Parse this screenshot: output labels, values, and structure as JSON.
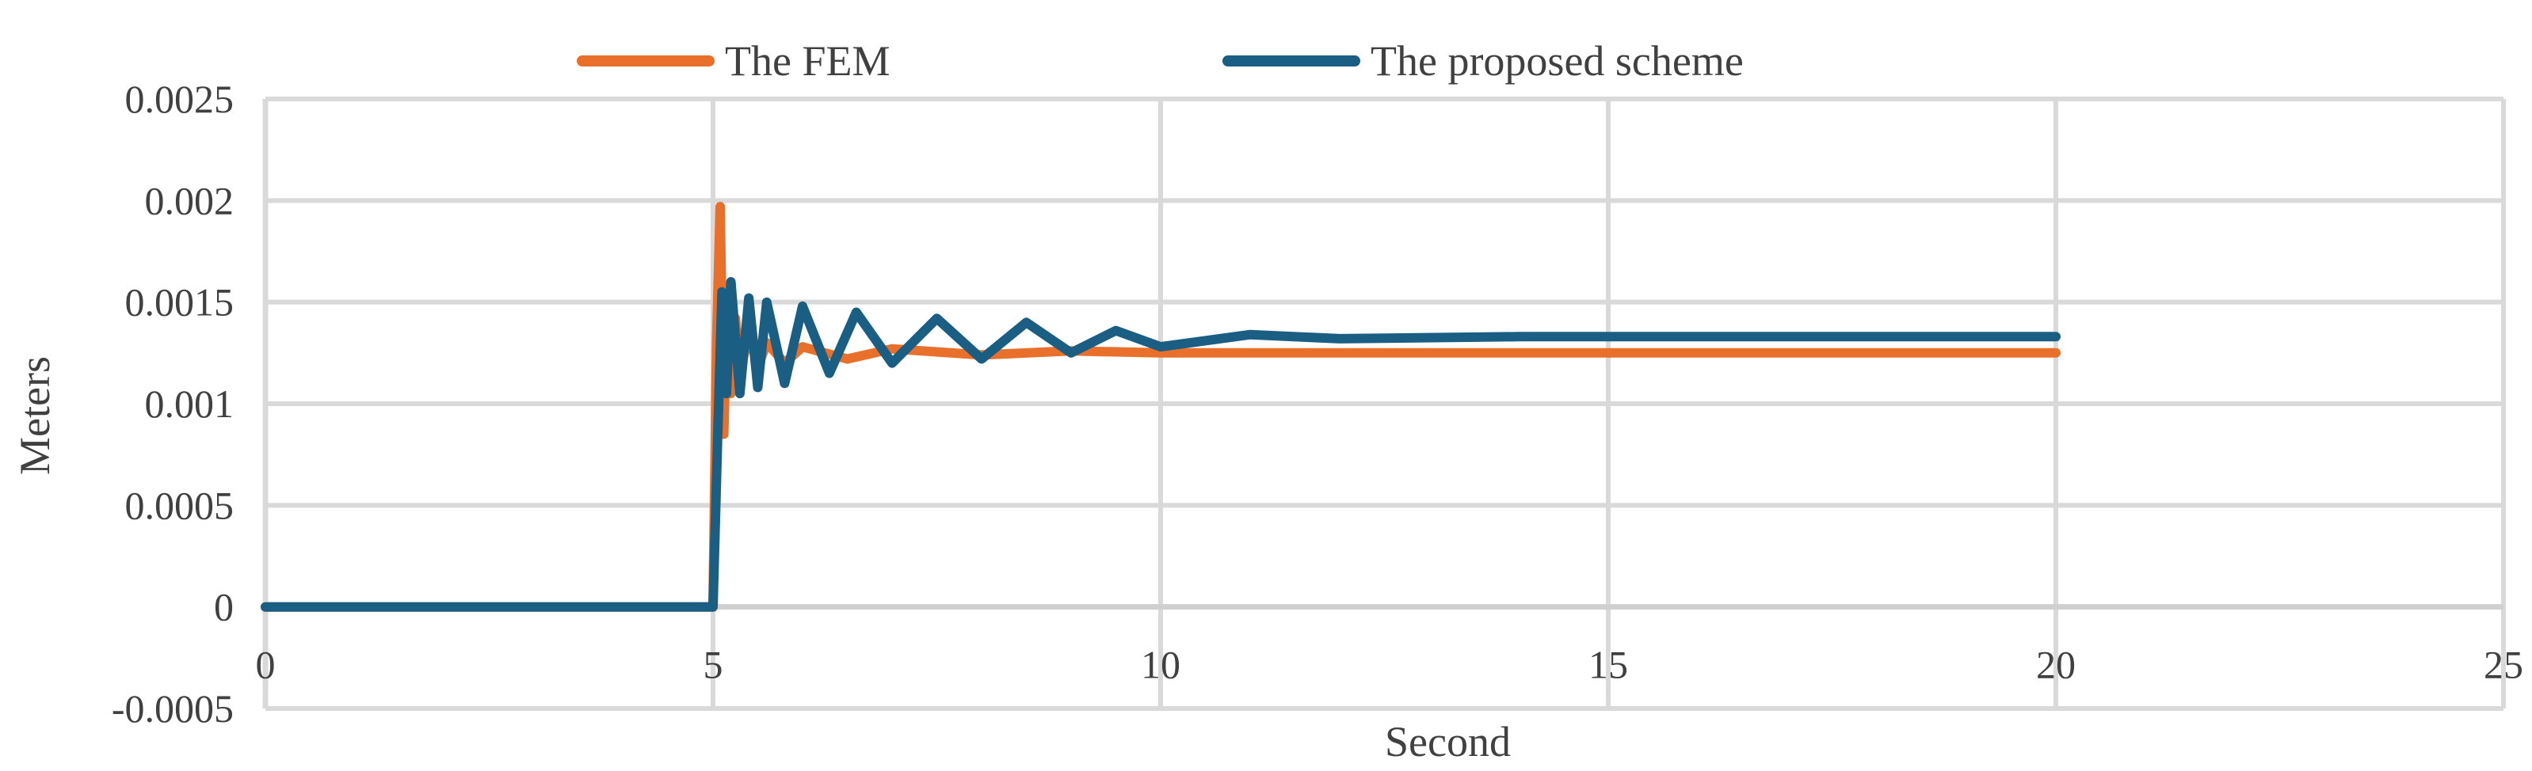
{
  "chart_data": {
    "type": "line",
    "title": "",
    "xlabel": "Second",
    "ylabel": "Meters",
    "xlim": [
      0,
      25
    ],
    "ylim": [
      -0.0005,
      0.0025
    ],
    "x_ticks": [
      0,
      5,
      10,
      15,
      20,
      25
    ],
    "x_tick_labels": [
      "0",
      "5",
      "10",
      "15",
      "20",
      "25"
    ],
    "y_ticks": [
      -0.0005,
      0,
      0.0005,
      0.001,
      0.0015,
      0.002,
      0.0025
    ],
    "y_tick_labels": [
      "-0.0005",
      "0",
      "0.0005",
      "0.001",
      "0.0015",
      "0.002",
      "0.0025"
    ],
    "grid": true,
    "legend_position": "top",
    "series": [
      {
        "name": "The FEM",
        "color": "#E8702A",
        "x": [
          0,
          5.0,
          5.04,
          5.08,
          5.12,
          5.16,
          5.2,
          5.25,
          5.3,
          5.4,
          5.5,
          5.6,
          5.8,
          6.0,
          6.5,
          7.0,
          8.0,
          9.0,
          10.0,
          12.0,
          14.0,
          16.0,
          18.0,
          20.0
        ],
        "values": [
          0,
          0,
          0.0013,
          0.00197,
          0.00085,
          0.00155,
          0.00105,
          0.00142,
          0.00115,
          0.00135,
          0.00118,
          0.0013,
          0.0012,
          0.00128,
          0.00122,
          0.00127,
          0.00124,
          0.00126,
          0.00125,
          0.00125,
          0.00125,
          0.00125,
          0.00125,
          0.00125
        ]
      },
      {
        "name": "The proposed scheme",
        "color": "#1A5E83",
        "x": [
          0,
          5.0,
          5.05,
          5.1,
          5.15,
          5.2,
          5.3,
          5.4,
          5.5,
          5.6,
          5.8,
          6.0,
          6.3,
          6.6,
          7.0,
          7.5,
          8.0,
          8.5,
          9.0,
          9.5,
          10.0,
          11.0,
          12.0,
          14.0,
          16.0,
          18.0,
          20.0
        ],
        "values": [
          0,
          0,
          0.0008,
          0.00155,
          0.00105,
          0.0016,
          0.00105,
          0.00152,
          0.00108,
          0.0015,
          0.0011,
          0.00148,
          0.00115,
          0.00145,
          0.0012,
          0.00142,
          0.00122,
          0.0014,
          0.00125,
          0.00136,
          0.00128,
          0.00134,
          0.00132,
          0.00133,
          0.00133,
          0.00133,
          0.00133
        ]
      }
    ]
  }
}
